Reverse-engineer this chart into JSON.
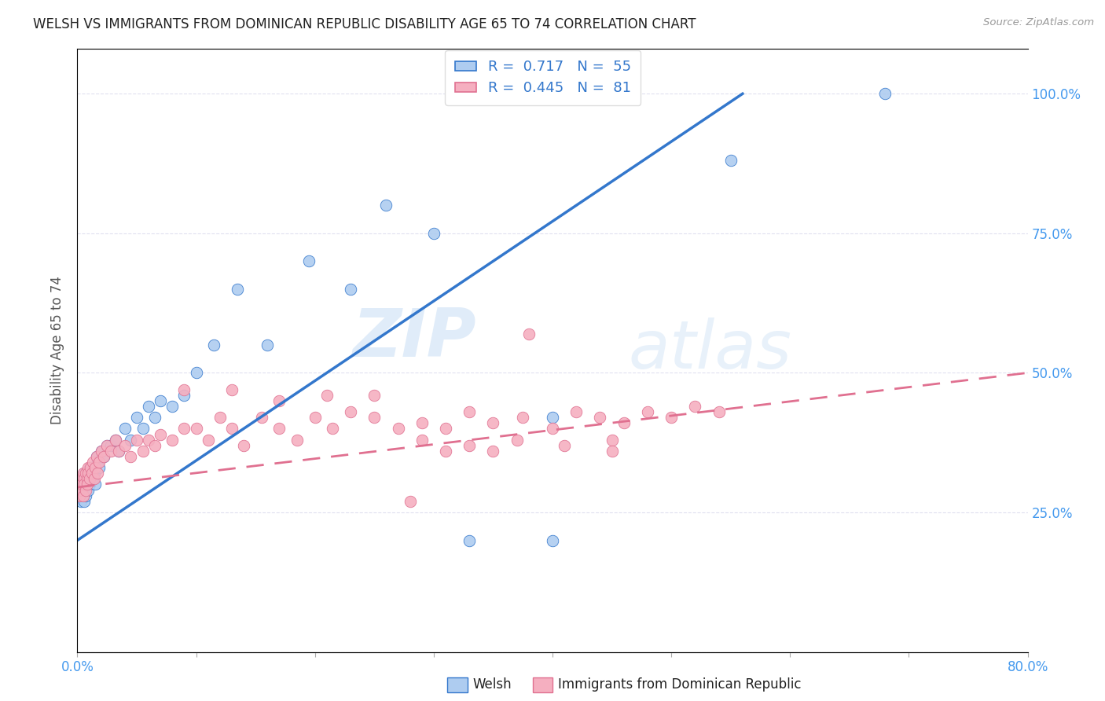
{
  "title": "WELSH VS IMMIGRANTS FROM DOMINICAN REPUBLIC DISABILITY AGE 65 TO 74 CORRELATION CHART",
  "source": "Source: ZipAtlas.com",
  "ylabel": "Disability Age 65 to 74",
  "xmin": 0.0,
  "xmax": 0.8,
  "ymin": 0.0,
  "ymax": 1.08,
  "yticks": [
    0.0,
    0.25,
    0.5,
    0.75,
    1.0
  ],
  "ytick_labels": [
    "",
    "25.0%",
    "50.0%",
    "75.0%",
    "100.0%"
  ],
  "xticks": [
    0.0,
    0.1,
    0.2,
    0.3,
    0.4,
    0.5,
    0.6,
    0.7,
    0.8
  ],
  "xtick_labels": [
    "0.0%",
    "",
    "",
    "",
    "",
    "",
    "",
    "",
    "80.0%"
  ],
  "welsh_R": 0.717,
  "welsh_N": 55,
  "dr_R": 0.445,
  "dr_N": 81,
  "welsh_color": "#aeccf0",
  "dr_color": "#f5afc0",
  "trend_blue": "#3377cc",
  "trend_pink": "#e07090",
  "watermark_zip": "ZIP",
  "watermark_atlas": "atlas",
  "legend_label1": "Welsh",
  "legend_label2": "Immigrants from Dominican Republic",
  "blue_line_x0": 0.0,
  "blue_line_y0": 0.2,
  "blue_line_x1": 0.56,
  "blue_line_y1": 1.0,
  "pink_line_x0": 0.0,
  "pink_line_y0": 0.295,
  "pink_line_x1": 0.8,
  "pink_line_y1": 0.5,
  "welsh_x": [
    0.001,
    0.002,
    0.003,
    0.003,
    0.004,
    0.004,
    0.005,
    0.005,
    0.006,
    0.006,
    0.007,
    0.007,
    0.008,
    0.008,
    0.009,
    0.009,
    0.01,
    0.01,
    0.011,
    0.011,
    0.012,
    0.013,
    0.014,
    0.015,
    0.016,
    0.017,
    0.018,
    0.02,
    0.022,
    0.025,
    0.028,
    0.032,
    0.035,
    0.04,
    0.045,
    0.05,
    0.055,
    0.06,
    0.065,
    0.07,
    0.08,
    0.09,
    0.1,
    0.115,
    0.135,
    0.16,
    0.195,
    0.23,
    0.26,
    0.3,
    0.33,
    0.4,
    0.4,
    0.55,
    0.68
  ],
  "welsh_y": [
    0.28,
    0.29,
    0.27,
    0.3,
    0.28,
    0.31,
    0.29,
    0.3,
    0.27,
    0.32,
    0.28,
    0.31,
    0.3,
    0.32,
    0.29,
    0.31,
    0.3,
    0.33,
    0.31,
    0.32,
    0.33,
    0.31,
    0.32,
    0.3,
    0.35,
    0.34,
    0.33,
    0.36,
    0.35,
    0.37,
    0.37,
    0.38,
    0.36,
    0.4,
    0.38,
    0.42,
    0.4,
    0.44,
    0.42,
    0.45,
    0.44,
    0.46,
    0.5,
    0.55,
    0.65,
    0.55,
    0.7,
    0.65,
    0.8,
    0.75,
    0.2,
    0.42,
    0.2,
    0.88,
    1.0
  ],
  "dr_x": [
    0.001,
    0.002,
    0.003,
    0.003,
    0.004,
    0.004,
    0.005,
    0.005,
    0.006,
    0.006,
    0.007,
    0.007,
    0.008,
    0.008,
    0.009,
    0.009,
    0.01,
    0.011,
    0.012,
    0.013,
    0.014,
    0.015,
    0.016,
    0.017,
    0.018,
    0.02,
    0.022,
    0.025,
    0.028,
    0.032,
    0.035,
    0.04,
    0.045,
    0.05,
    0.055,
    0.06,
    0.065,
    0.07,
    0.08,
    0.09,
    0.1,
    0.11,
    0.12,
    0.13,
    0.14,
    0.155,
    0.17,
    0.185,
    0.2,
    0.215,
    0.23,
    0.25,
    0.27,
    0.29,
    0.31,
    0.33,
    0.35,
    0.375,
    0.4,
    0.42,
    0.44,
    0.46,
    0.48,
    0.5,
    0.52,
    0.54,
    0.09,
    0.13,
    0.17,
    0.21,
    0.25,
    0.29,
    0.33,
    0.37,
    0.41,
    0.45,
    0.31,
    0.35,
    0.28,
    0.45,
    0.38
  ],
  "dr_y": [
    0.29,
    0.28,
    0.3,
    0.31,
    0.29,
    0.3,
    0.32,
    0.28,
    0.31,
    0.3,
    0.32,
    0.29,
    0.31,
    0.3,
    0.33,
    0.32,
    0.31,
    0.33,
    0.32,
    0.34,
    0.31,
    0.33,
    0.35,
    0.32,
    0.34,
    0.36,
    0.35,
    0.37,
    0.36,
    0.38,
    0.36,
    0.37,
    0.35,
    0.38,
    0.36,
    0.38,
    0.37,
    0.39,
    0.38,
    0.4,
    0.4,
    0.38,
    0.42,
    0.4,
    0.37,
    0.42,
    0.4,
    0.38,
    0.42,
    0.4,
    0.43,
    0.42,
    0.4,
    0.41,
    0.4,
    0.43,
    0.41,
    0.42,
    0.4,
    0.43,
    0.42,
    0.41,
    0.43,
    0.42,
    0.44,
    0.43,
    0.47,
    0.47,
    0.45,
    0.46,
    0.46,
    0.38,
    0.37,
    0.38,
    0.37,
    0.38,
    0.36,
    0.36,
    0.27,
    0.36,
    0.57
  ]
}
